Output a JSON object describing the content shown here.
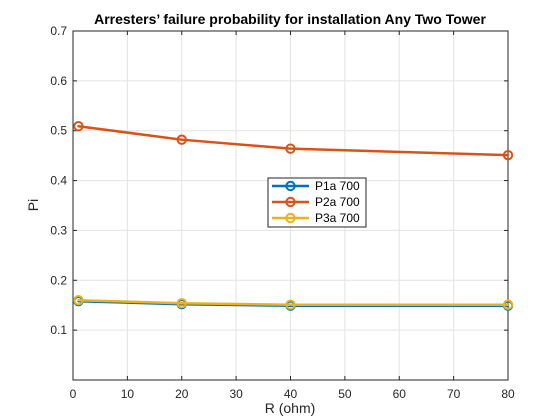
{
  "chart_data": {
    "type": "line",
    "title": "Arresters’ failure probability  for installation Any Two Tower",
    "xlabel": "R (ohm)",
    "ylabel": "Pi",
    "xlim": [
      0,
      80
    ],
    "ylim": [
      0,
      0.7
    ],
    "xticks": [
      "0",
      "10",
      "20",
      "30",
      "40",
      "50",
      "60",
      "70",
      "80"
    ],
    "yticks": [
      "0.1",
      "0.2",
      "0.3",
      "0.4",
      "0.5",
      "0.6",
      "0.7"
    ],
    "grid": true,
    "legend_position": "center",
    "x": [
      1,
      20,
      40,
      80
    ],
    "series": [
      {
        "name": "P1a 700",
        "color": "#0072BD",
        "values": [
          0.158,
          0.152,
          0.149,
          0.149
        ]
      },
      {
        "name": "P2a 700",
        "color": "#D95319",
        "values": [
          0.509,
          0.482,
          0.464,
          0.451
        ]
      },
      {
        "name": "P3a 700",
        "color": "#EDB120",
        "values": [
          0.16,
          0.154,
          0.151,
          0.151
        ]
      }
    ]
  }
}
